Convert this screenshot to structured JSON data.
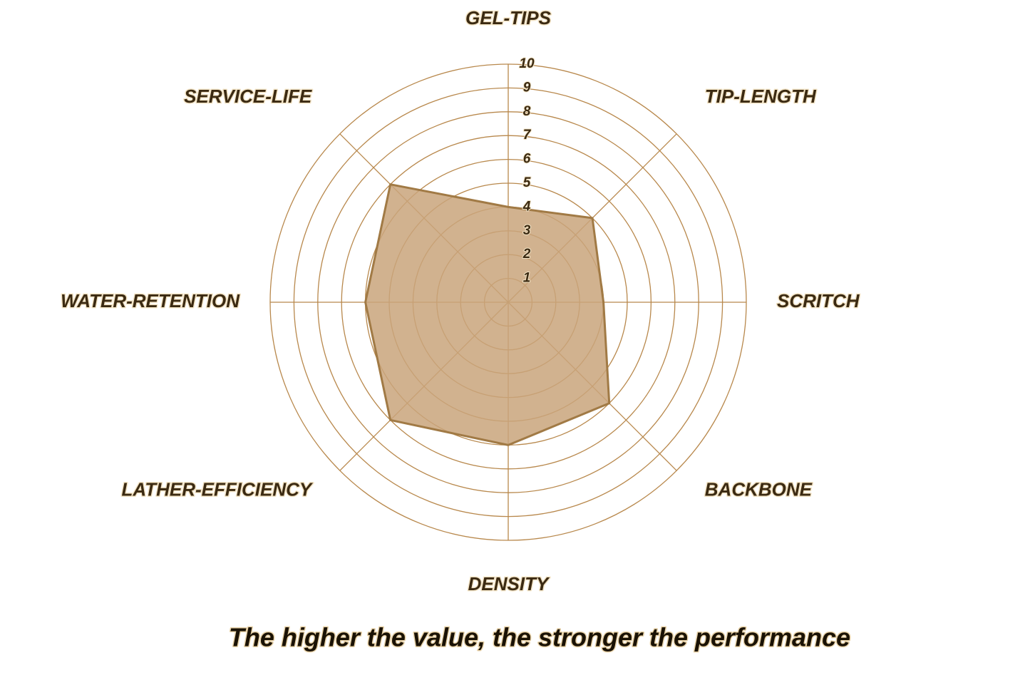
{
  "chart_data": {
    "type": "radar",
    "categories": [
      "GEL-TIPS",
      "TIP-LENGTH",
      "SCRITCH",
      "BACKBONE",
      "DENSITY",
      "LATHER-EFFICIENCY",
      "WATER-RETENTION",
      "SERVICE-LIFE"
    ],
    "values": [
      4,
      5,
      4,
      6,
      6,
      7,
      6,
      7
    ],
    "rlim": [
      0,
      10
    ],
    "rticks": [
      1,
      2,
      3,
      4,
      5,
      6,
      7,
      8,
      9,
      10
    ],
    "color": "#c9a57b",
    "edge_color": "#a17a45",
    "grid_color": "#b8884c",
    "caption": "The higher the value, the stronger the performance"
  }
}
